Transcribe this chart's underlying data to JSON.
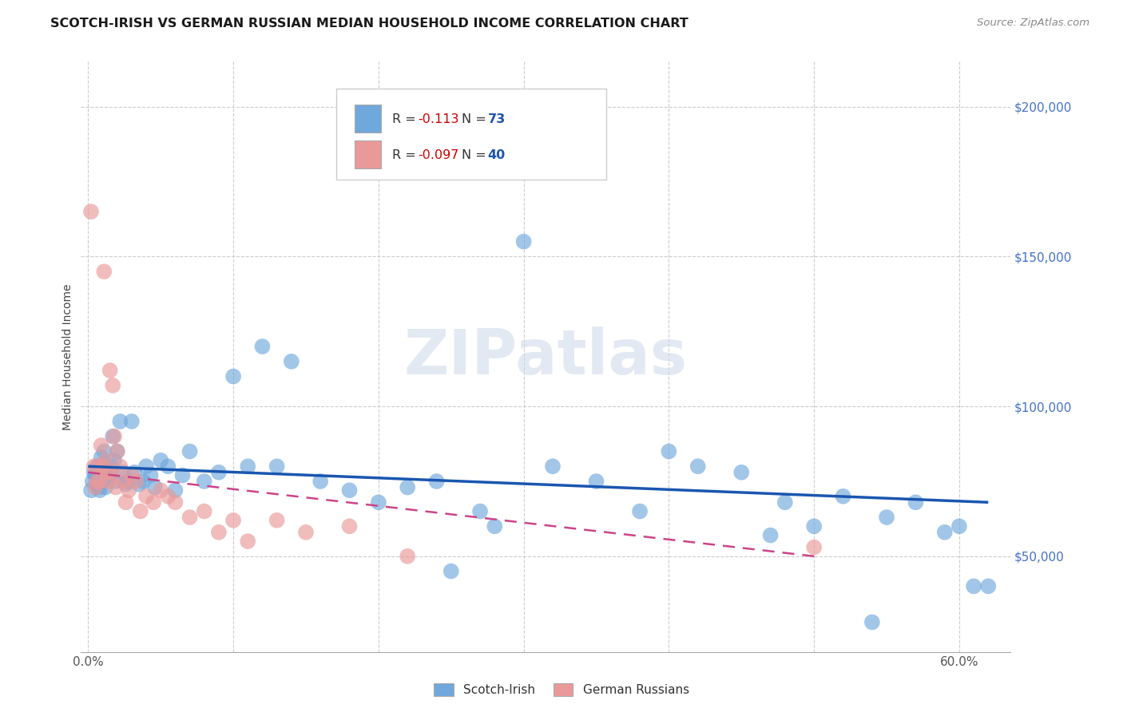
{
  "title": "SCOTCH-IRISH VS GERMAN RUSSIAN MEDIAN HOUSEHOLD INCOME CORRELATION CHART",
  "source": "Source: ZipAtlas.com",
  "ylabel": "Median Household Income",
  "watermark": "ZIPatlas",
  "yticks": [
    50000,
    100000,
    150000,
    200000
  ],
  "xticks": [
    0.0,
    0.1,
    0.2,
    0.3,
    0.4,
    0.5,
    0.6
  ],
  "xtick_labels": [
    "0.0%",
    "",
    "",
    "",
    "",
    "",
    "60.0%"
  ],
  "xmin": -0.005,
  "xmax": 0.635,
  "ymin": 18000,
  "ymax": 215000,
  "blue_color": "#6fa8dc",
  "pink_color": "#ea9999",
  "line_blue": "#1a56b0",
  "line_pink": "#cc4488",
  "scotch_irish_x": [
    0.002,
    0.003,
    0.004,
    0.005,
    0.006,
    0.006,
    0.007,
    0.007,
    0.008,
    0.008,
    0.009,
    0.009,
    0.01,
    0.01,
    0.011,
    0.012,
    0.013,
    0.014,
    0.015,
    0.016,
    0.017,
    0.018,
    0.019,
    0.02,
    0.022,
    0.024,
    0.026,
    0.028,
    0.03,
    0.032,
    0.035,
    0.038,
    0.04,
    0.043,
    0.046,
    0.05,
    0.055,
    0.06,
    0.065,
    0.07,
    0.08,
    0.09,
    0.1,
    0.11,
    0.12,
    0.13,
    0.14,
    0.16,
    0.18,
    0.2,
    0.22,
    0.24,
    0.25,
    0.27,
    0.28,
    0.3,
    0.32,
    0.35,
    0.38,
    0.4,
    0.42,
    0.45,
    0.47,
    0.48,
    0.5,
    0.52,
    0.54,
    0.55,
    0.57,
    0.59,
    0.6,
    0.61,
    0.62
  ],
  "scotch_irish_y": [
    72000,
    75000,
    78000,
    77000,
    74000,
    80000,
    73000,
    76000,
    72000,
    79000,
    83000,
    77000,
    75000,
    80000,
    85000,
    73000,
    78000,
    76000,
    77000,
    80000,
    90000,
    82000,
    75000,
    85000,
    95000,
    78000,
    74000,
    75000,
    95000,
    78000,
    74000,
    75000,
    80000,
    77000,
    73000,
    82000,
    80000,
    72000,
    77000,
    85000,
    75000,
    78000,
    110000,
    80000,
    120000,
    80000,
    115000,
    75000,
    72000,
    68000,
    73000,
    75000,
    45000,
    65000,
    60000,
    155000,
    80000,
    75000,
    65000,
    85000,
    80000,
    78000,
    57000,
    68000,
    60000,
    70000,
    28000,
    63000,
    68000,
    58000,
    60000,
    40000,
    40000
  ],
  "german_russian_x": [
    0.002,
    0.004,
    0.005,
    0.006,
    0.007,
    0.008,
    0.009,
    0.01,
    0.011,
    0.012,
    0.013,
    0.014,
    0.015,
    0.016,
    0.017,
    0.018,
    0.019,
    0.02,
    0.022,
    0.024,
    0.026,
    0.028,
    0.03,
    0.033,
    0.036,
    0.04,
    0.045,
    0.05,
    0.055,
    0.06,
    0.07,
    0.08,
    0.09,
    0.1,
    0.11,
    0.13,
    0.15,
    0.18,
    0.22,
    0.5
  ],
  "german_russian_y": [
    165000,
    80000,
    73000,
    75000,
    80000,
    75000,
    87000,
    80000,
    145000,
    82000,
    78000,
    75000,
    112000,
    78000,
    107000,
    90000,
    73000,
    85000,
    80000,
    75000,
    68000,
    72000,
    77000,
    75000,
    65000,
    70000,
    68000,
    72000,
    70000,
    68000,
    63000,
    65000,
    58000,
    62000,
    55000,
    62000,
    58000,
    60000,
    50000,
    53000
  ],
  "blue_line_x0": 0.0,
  "blue_line_x1": 0.62,
  "blue_line_y0": 80000,
  "blue_line_y1": 68000,
  "pink_line_x0": 0.0,
  "pink_line_x1": 0.5,
  "pink_line_y0": 78000,
  "pink_line_y1": 50000
}
